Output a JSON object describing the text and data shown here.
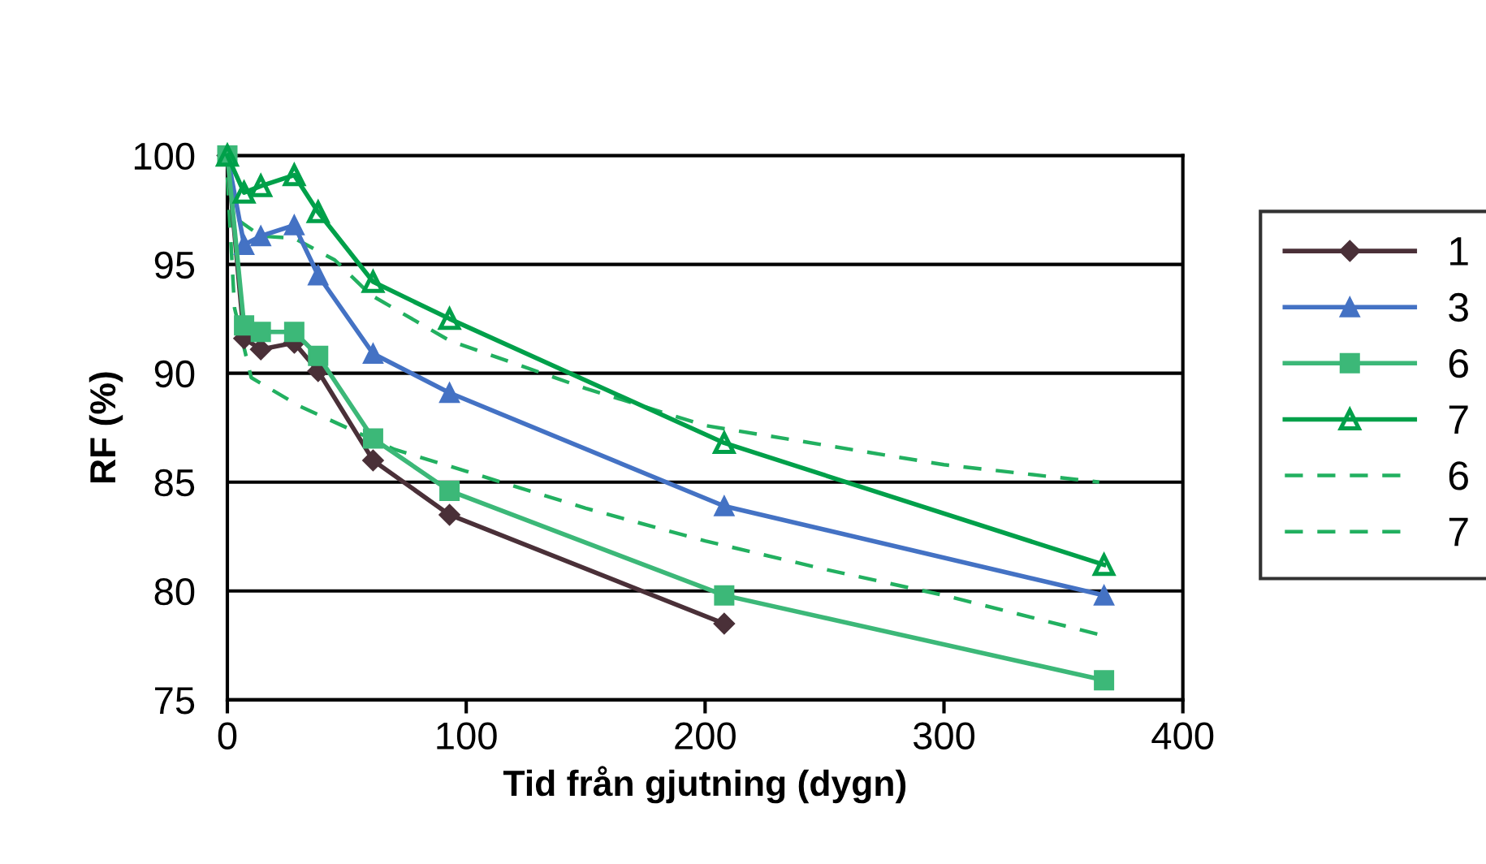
{
  "chart_data": {
    "type": "line",
    "xlabel": "Tid från gjutning (dygn)",
    "ylabel": "RF (%)",
    "xlim": [
      0,
      400
    ],
    "xticks": [
      0,
      100,
      200,
      300,
      400
    ],
    "ylim": [
      75,
      100
    ],
    "yticks": [
      75,
      80,
      85,
      90,
      95,
      100
    ],
    "grid": "y",
    "legend": "right",
    "series": [
      {
        "name": "1",
        "color": "#4a3038",
        "marker": "diamond",
        "line_style": "solid",
        "x": [
          0,
          7,
          14,
          28,
          38,
          61,
          93,
          208
        ],
        "values": [
          100,
          91.6,
          91.1,
          91.4,
          90.1,
          86.0,
          83.5,
          78.5
        ]
      },
      {
        "name": "3",
        "color": "#4472c4",
        "marker": "triangle",
        "line_style": "solid",
        "x": [
          0,
          7,
          14,
          28,
          38,
          61,
          93,
          208,
          367
        ],
        "values": [
          100,
          95.9,
          96.3,
          96.8,
          94.5,
          90.9,
          89.1,
          83.9,
          79.8
        ]
      },
      {
        "name": "6",
        "color": "#3cb878",
        "marker": "square",
        "line_style": "solid",
        "x": [
          0,
          7,
          14,
          28,
          38,
          61,
          93,
          208,
          367
        ],
        "values": [
          100,
          92.2,
          91.9,
          91.9,
          90.8,
          87.0,
          84.6,
          79.8,
          75.9
        ]
      },
      {
        "name": "7",
        "color": "#00a04a",
        "marker": "triangle_open",
        "line_style": "solid",
        "x": [
          0,
          7,
          14,
          28,
          38,
          61,
          93,
          208,
          367
        ],
        "values": [
          100,
          98.3,
          98.6,
          99.1,
          97.4,
          94.2,
          92.5,
          86.8,
          81.2
        ]
      },
      {
        "name": "6",
        "color": "#22b060",
        "marker": "none",
        "line_style": "dashed",
        "x": [
          0,
          3,
          10,
          30,
          50,
          70,
          100,
          150,
          200,
          250,
          300,
          365
        ],
        "values": [
          99,
          93,
          89.8,
          88.5,
          87.5,
          86.5,
          85.5,
          83.8,
          82.3,
          81,
          79.8,
          78
        ]
      },
      {
        "name": "7",
        "color": "#22b060",
        "marker": "none",
        "line_style": "dashed",
        "x": [
          0,
          5,
          14,
          28,
          45,
          60,
          93,
          150,
          200,
          250,
          300,
          365
        ],
        "values": [
          100,
          97,
          96.3,
          96.2,
          95.2,
          93.6,
          91.5,
          89.3,
          87.6,
          86.7,
          85.8,
          85
        ]
      }
    ]
  }
}
